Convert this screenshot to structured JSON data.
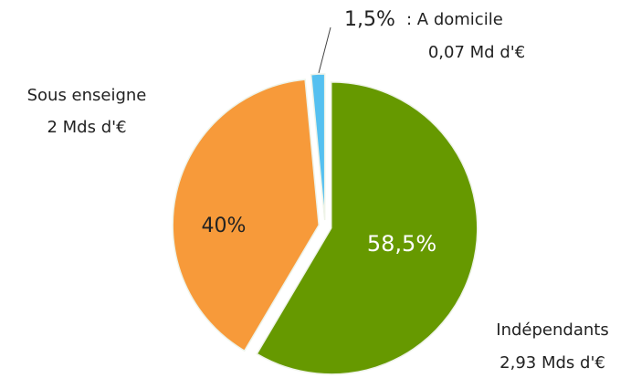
{
  "chart_data": {
    "type": "pie",
    "categories": [
      "Indépendants",
      "Sous enseigne",
      ": A domicile"
    ],
    "amount_labels": [
      "2,93 Mds d'€",
      "2 Mds d'€",
      "0,07 Md d'€"
    ],
    "values": [
      58.5,
      40,
      1.5
    ],
    "value_labels": [
      "58,5%",
      "40%",
      "1,5%"
    ],
    "colors": [
      "#669900",
      "#f79a3a",
      "#55c0f0"
    ]
  }
}
